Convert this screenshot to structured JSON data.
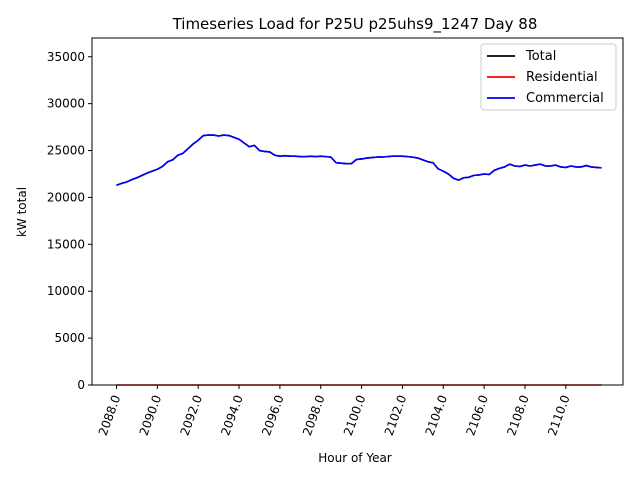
{
  "chart_data": {
    "type": "line",
    "title": "Timeseries Load for P25U p25uhs9_1247  Day 88",
    "xlabel": "Hour of Year",
    "ylabel": "kW total",
    "xlim": [
      2086.8,
      2112.8
    ],
    "ylim": [
      0,
      37000
    ],
    "xticks": [
      2088,
      2090,
      2092,
      2094,
      2096,
      2098,
      2100,
      2102,
      2104,
      2106,
      2108,
      2110
    ],
    "xtick_labels": [
      "2088.0",
      "2090.0",
      "2092.0",
      "2094.0",
      "2096.0",
      "2098.0",
      "2100.0",
      "2102.0",
      "2104.0",
      "2106.0",
      "2108.0",
      "2110.0"
    ],
    "yticks": [
      0,
      5000,
      10000,
      15000,
      20000,
      25000,
      30000,
      35000
    ],
    "ytick_labels": [
      "0",
      "5000",
      "10000",
      "15000",
      "20000",
      "25000",
      "30000",
      "35000"
    ],
    "legend_position": "top-right",
    "x": [
      2088.0,
      2088.25,
      2088.5,
      2088.75,
      2089.0,
      2089.25,
      2089.5,
      2089.75,
      2090.0,
      2090.25,
      2090.5,
      2090.75,
      2091.0,
      2091.25,
      2091.5,
      2091.75,
      2092.0,
      2092.25,
      2092.5,
      2092.75,
      2093.0,
      2093.25,
      2093.5,
      2093.75,
      2094.0,
      2094.25,
      2094.5,
      2094.75,
      2095.0,
      2095.25,
      2095.5,
      2095.75,
      2096.0,
      2096.25,
      2096.5,
      2096.75,
      2097.0,
      2097.25,
      2097.5,
      2097.75,
      2098.0,
      2098.25,
      2098.5,
      2098.75,
      2099.0,
      2099.25,
      2099.5,
      2099.75,
      2100.0,
      2100.25,
      2100.5,
      2100.75,
      2101.0,
      2101.25,
      2101.5,
      2101.75,
      2102.0,
      2102.25,
      2102.5,
      2102.75,
      2103.0,
      2103.25,
      2103.5,
      2103.75,
      2104.0,
      2104.25,
      2104.5,
      2104.75,
      2105.0,
      2105.25,
      2105.5,
      2105.75,
      2106.0,
      2106.25,
      2106.5,
      2106.75,
      2107.0,
      2107.25,
      2107.5,
      2107.75,
      2108.0,
      2108.25,
      2108.5,
      2108.75,
      2109.0,
      2109.25,
      2109.5,
      2109.75,
      2110.0,
      2110.25,
      2110.5,
      2110.75,
      2111.0,
      2111.25,
      2111.5,
      2111.75
    ],
    "series": [
      {
        "name": "Total",
        "color": "#000000",
        "values": [
          21300,
          21500,
          21650,
          21900,
          22100,
          22350,
          22600,
          22800,
          23000,
          23300,
          23800,
          24000,
          24500,
          24700,
          25200,
          25700,
          26100,
          26600,
          26650,
          26650,
          26550,
          26650,
          26600,
          26400,
          26200,
          25800,
          25400,
          25550,
          25000,
          24900,
          24850,
          24500,
          24400,
          24450,
          24400,
          24400,
          24350,
          24350,
          24400,
          24350,
          24400,
          24350,
          24300,
          23700,
          23650,
          23600,
          23600,
          24050,
          24100,
          24200,
          24250,
          24300,
          24300,
          24350,
          24400,
          24400,
          24400,
          24350,
          24300,
          24200,
          24000,
          23800,
          23700,
          23050,
          22800,
          22500,
          22050,
          21850,
          22100,
          22150,
          22350,
          22400,
          22500,
          22450,
          22900,
          23100,
          23250,
          23550,
          23350,
          23300,
          23450,
          23350,
          23450,
          23550,
          23350,
          23350,
          23450,
          23250,
          23200,
          23350,
          23250,
          23250,
          23400,
          23250,
          23200,
          23150
        ]
      },
      {
        "name": "Residential",
        "color": "#ff0000",
        "values": [
          0,
          0,
          0,
          0,
          0,
          0,
          0,
          0,
          0,
          0,
          0,
          0,
          0,
          0,
          0,
          0,
          0,
          0,
          0,
          0,
          0,
          0,
          0,
          0,
          0,
          0,
          0,
          0,
          0,
          0,
          0,
          0,
          0,
          0,
          0,
          0,
          0,
          0,
          0,
          0,
          0,
          0,
          0,
          0,
          0,
          0,
          0,
          0,
          0,
          0,
          0,
          0,
          0,
          0,
          0,
          0,
          0,
          0,
          0,
          0,
          0,
          0,
          0,
          0,
          0,
          0,
          0,
          0,
          0,
          0,
          0,
          0,
          0,
          0,
          0,
          0,
          0,
          0,
          0,
          0,
          0,
          0,
          0,
          0,
          0,
          0,
          0,
          0,
          0,
          0,
          0,
          0,
          0,
          0,
          0,
          0
        ]
      },
      {
        "name": "Commercial",
        "color": "#0000ff",
        "values": [
          21300,
          21500,
          21650,
          21900,
          22100,
          22350,
          22600,
          22800,
          23000,
          23300,
          23800,
          24000,
          24500,
          24700,
          25200,
          25700,
          26100,
          26600,
          26650,
          26650,
          26550,
          26650,
          26600,
          26400,
          26200,
          25800,
          25400,
          25550,
          25000,
          24900,
          24850,
          24500,
          24400,
          24450,
          24400,
          24400,
          24350,
          24350,
          24400,
          24350,
          24400,
          24350,
          24300,
          23700,
          23650,
          23600,
          23600,
          24050,
          24100,
          24200,
          24250,
          24300,
          24300,
          24350,
          24400,
          24400,
          24400,
          24350,
          24300,
          24200,
          24000,
          23800,
          23700,
          23050,
          22800,
          22500,
          22050,
          21850,
          22100,
          22150,
          22350,
          22400,
          22500,
          22450,
          22900,
          23100,
          23250,
          23550,
          23350,
          23300,
          23450,
          23350,
          23450,
          23550,
          23350,
          23350,
          23450,
          23250,
          23200,
          23350,
          23250,
          23250,
          23400,
          23250,
          23200,
          23150
        ]
      }
    ]
  }
}
